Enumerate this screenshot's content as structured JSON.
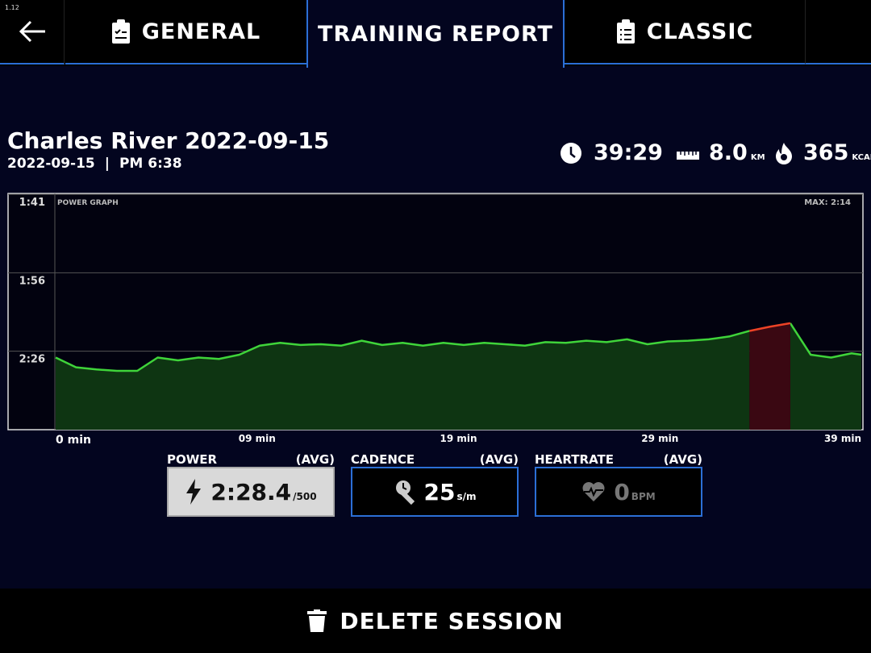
{
  "version": "1.12",
  "tabs": [
    "GENERAL",
    "TRAINING REPORT",
    "CLASSIC"
  ],
  "session": {
    "title": "Charles River 2022-09-15",
    "date": "2022-09-15",
    "separator": "|",
    "time": "PM 6:38"
  },
  "stats": [
    {
      "value": "39:29"
    },
    {
      "value": "8.0",
      "unit": "KM"
    },
    {
      "value": "365",
      "unit": "KCAL"
    }
  ],
  "chart_data": {
    "type": "line",
    "label": "POWER GRAPH",
    "annotation": "MAX: 2:14",
    "x": [
      0,
      1,
      2,
      3,
      4,
      5,
      6,
      7,
      8,
      9,
      10,
      11,
      12,
      13,
      14,
      15,
      16,
      17,
      18,
      19,
      20,
      21,
      22,
      23,
      24,
      25,
      26,
      27,
      28,
      29,
      30,
      31,
      32,
      33,
      34,
      35,
      36,
      37,
      38,
      39,
      39.48
    ],
    "series": [
      {
        "color": "#3fd43a",
        "fill": "#0e3512",
        "values": [
          103,
          89,
          86,
          84,
          84,
          103,
          99,
          103,
          101,
          107,
          120,
          124,
          121,
          122,
          120,
          127,
          121,
          124,
          120,
          124,
          121,
          124,
          122,
          120,
          125,
          124,
          127,
          125,
          129,
          122,
          126,
          127,
          129,
          133,
          141,
          null,
          152,
          107,
          103,
          109,
          107
        ]
      },
      {
        "color": "#ec4326",
        "fill": "#3a0812",
        "values": [
          null,
          null,
          null,
          null,
          null,
          null,
          null,
          null,
          null,
          null,
          null,
          null,
          null,
          null,
          null,
          null,
          null,
          null,
          null,
          null,
          null,
          null,
          null,
          null,
          null,
          null,
          null,
          null,
          null,
          null,
          null,
          null,
          null,
          null,
          141,
          147,
          152,
          null,
          null,
          null,
          null
        ]
      }
    ],
    "xlim": [
      0,
      39.48
    ],
    "xticks": [
      {
        "value": 0,
        "label": "0 min"
      },
      {
        "value": 9.87,
        "label": "09 min"
      },
      {
        "value": 19.74,
        "label": "19 min"
      },
      {
        "value": 29.61,
        "label": "29 min"
      },
      {
        "value": 39.48,
        "label": "39 min"
      }
    ],
    "ylim": [
      0,
      336
    ],
    "yticks": [
      {
        "value": 336,
        "label": "1:41"
      },
      {
        "value": 224,
        "label": "1:56"
      },
      {
        "value": 112,
        "label": "2:26"
      }
    ],
    "grid": true
  },
  "metrics": [
    {
      "label": "POWER",
      "tag": "(AVG)",
      "value": "2:28.4",
      "unit": "/500"
    },
    {
      "label": "CADENCE",
      "tag": "(AVG)",
      "value": "25",
      "unit": "s/m"
    },
    {
      "label": "HEARTRATE",
      "tag": "(AVG)",
      "value": "0",
      "unit": "BPM"
    }
  ],
  "delete": "DELETE SESSION"
}
